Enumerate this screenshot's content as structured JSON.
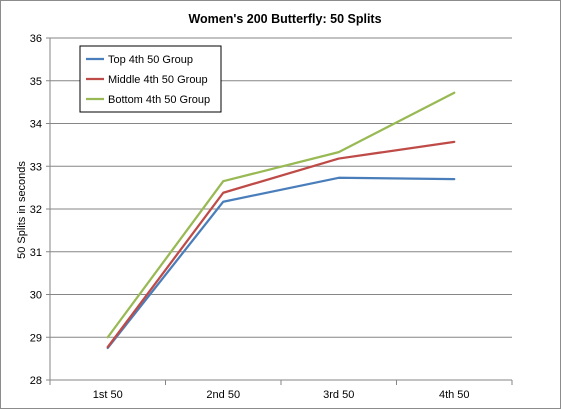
{
  "chart_data": {
    "type": "line",
    "title": "Women's 200 Butterfly: 50 Splits",
    "xlabel": "",
    "ylabel": "50 Splits in seconds",
    "categories": [
      "1st 50",
      "2nd 50",
      "3rd 50",
      "4th 50"
    ],
    "ylim": [
      28,
      36
    ],
    "yticks": [
      "28",
      "29",
      "30",
      "31",
      "32",
      "33",
      "34",
      "35",
      "36"
    ],
    "grid": true,
    "legend_position": "top-left",
    "series": [
      {
        "name": "Top 4th 50  Group",
        "color": "#4a7ebb",
        "values": [
          28.75,
          32.17,
          32.73,
          32.7
        ]
      },
      {
        "name": "Middle 4th 50 Group",
        "color": "#be4b48",
        "values": [
          28.77,
          32.38,
          33.18,
          33.57
        ]
      },
      {
        "name": "Bottom 4th 50 Group",
        "color": "#98b954",
        "values": [
          29.0,
          32.65,
          33.33,
          34.72
        ]
      }
    ]
  }
}
